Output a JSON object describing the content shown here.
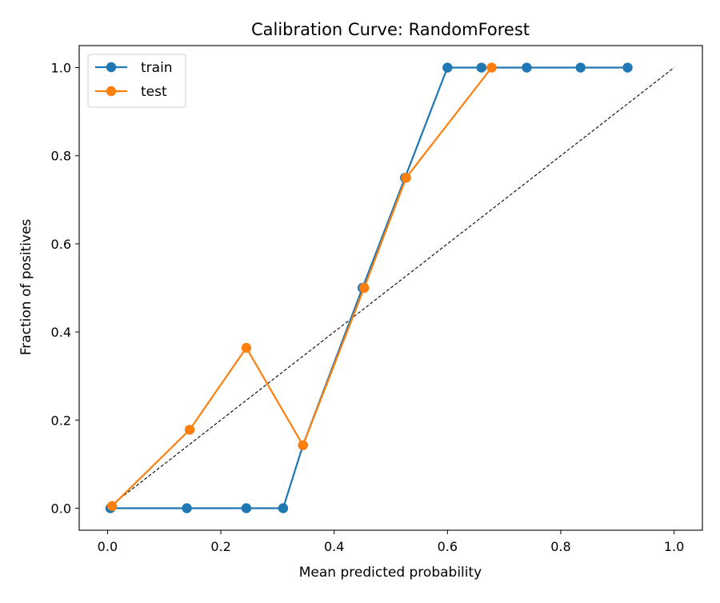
{
  "chart_data": {
    "type": "line",
    "title": "Calibration Curve: RandomForest",
    "xlabel": "Mean predicted probability",
    "ylabel": "Fraction of positives",
    "xlim": [
      -0.05,
      1.05
    ],
    "ylim": [
      -0.05,
      1.05
    ],
    "xticks": [
      0.0,
      0.2,
      0.4,
      0.6,
      0.8,
      1.0
    ],
    "yticks": [
      0.0,
      0.2,
      0.4,
      0.6,
      0.8,
      1.0
    ],
    "xtick_labels": [
      "0.0",
      "0.2",
      "0.4",
      "0.6",
      "0.8",
      "1.0"
    ],
    "ytick_labels": [
      "0.0",
      "0.2",
      "0.4",
      "0.6",
      "0.8",
      "1.0"
    ],
    "grid": false,
    "legend_position": "upper-left",
    "series": [
      {
        "name": "train",
        "color": "#1f77b4",
        "marker": "circle",
        "x": [
          0.005,
          0.14,
          0.245,
          0.31,
          0.345,
          0.45,
          0.525,
          0.6,
          0.66,
          0.74,
          0.835,
          0.918
        ],
        "y": [
          0.0,
          0.0,
          0.0,
          0.0,
          0.143,
          0.5,
          0.75,
          1.0,
          1.0,
          1.0,
          1.0,
          1.0
        ]
      },
      {
        "name": "test",
        "color": "#ff7f0e",
        "marker": "circle",
        "x": [
          0.008,
          0.145,
          0.245,
          0.345,
          0.453,
          0.527,
          0.678
        ],
        "y": [
          0.005,
          0.178,
          0.364,
          0.143,
          0.5,
          0.75,
          1.0
        ]
      }
    ],
    "reference_line": {
      "style": "dashed",
      "color": "#000000",
      "x": [
        0.0,
        1.0
      ],
      "y": [
        0.0,
        1.0
      ]
    }
  }
}
